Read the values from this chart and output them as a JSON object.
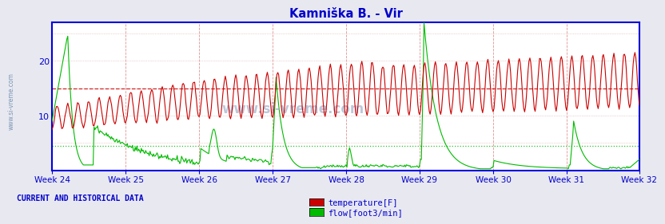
{
  "title": "Kamniška B. - Vir",
  "title_color": "#0000cc",
  "bg_color": "#e8e8f0",
  "plot_bg_color": "#ffffff",
  "axis_color": "#0000dd",
  "text_color": "#0000cc",
  "watermark": "www.si-vreme.com",
  "weeks": [
    "Week 24",
    "Week 25",
    "Week 26",
    "Week 27",
    "Week 28",
    "Week 29",
    "Week 30",
    "Week 31",
    "Week 32"
  ],
  "ylim": [
    0,
    27
  ],
  "yticks": [
    10,
    20
  ],
  "temp_avg_line": 15.0,
  "flow_avg_line": 4.5,
  "temp_color": "#cc0000",
  "flow_color": "#00bb00",
  "vgrid_color": "#dd8888",
  "hgrid_color": "#ddaaaa",
  "dashed_red": "#cc0000",
  "dashed_green": "#00bb00",
  "n_points": 672,
  "weeks_x": [
    0,
    84,
    168,
    252,
    336,
    420,
    504,
    588,
    671
  ],
  "legend_label_temp": "temperature[F]",
  "legend_label_flow": "flow[foot3/min]",
  "bottom_label": "CURRENT AND HISTORICAL DATA"
}
